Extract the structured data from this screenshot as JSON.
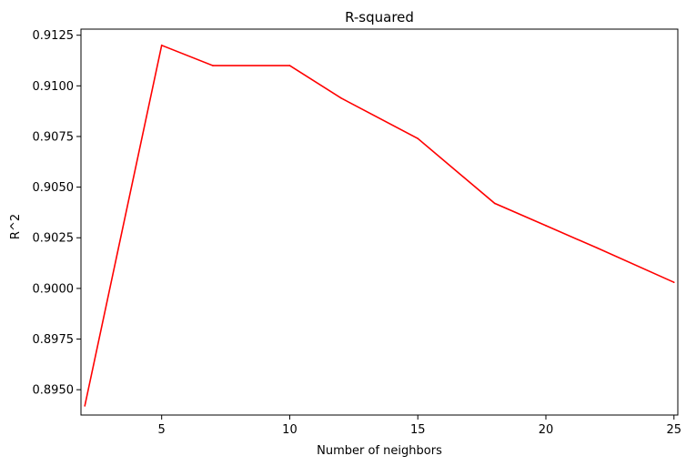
{
  "chart_data": {
    "type": "line",
    "title": "R-squared",
    "xlabel": "Number of neighbors",
    "ylabel": "R^2",
    "xlim": [
      1.85,
      25.15
    ],
    "ylim": [
      0.89375,
      0.9128
    ],
    "xticks": [
      5,
      10,
      15,
      20,
      25
    ],
    "yticks": [
      0.895,
      0.8975,
      0.9,
      0.9025,
      0.905,
      0.9075,
      0.91,
      0.9125
    ],
    "ytick_labels": [
      "0.8950",
      "0.8975",
      "0.9000",
      "0.9025",
      "0.9050",
      "0.9075",
      "0.9100",
      "0.9125"
    ],
    "grid": false,
    "series": [
      {
        "color": "#ff0000",
        "x": [
          2,
          5,
          7,
          10,
          12,
          15,
          18,
          20,
          22,
          25
        ],
        "y": [
          0.8942,
          0.912,
          0.911,
          0.911,
          0.9094,
          0.9074,
          0.9042,
          0.9031,
          0.902,
          0.9003
        ]
      }
    ]
  }
}
